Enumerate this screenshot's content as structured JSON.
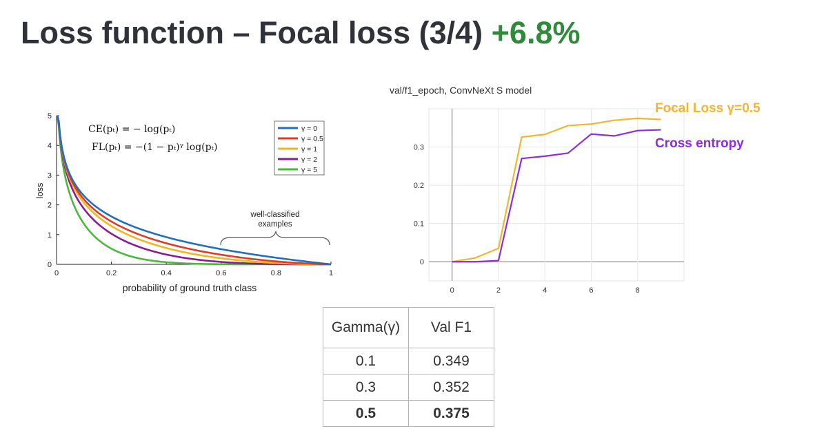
{
  "slide": {
    "title_main": "Loss function – Focal loss (3/4)",
    "title_gain": "+6.8%",
    "title_gain_color": "#2e8b3a"
  },
  "chart_data": [
    {
      "type": "line",
      "title": "",
      "xlabel": "probability of ground truth class",
      "ylabel": "loss",
      "xlim": [
        0,
        1
      ],
      "ylim": [
        0,
        5
      ],
      "xticks": [
        "0",
        "0.2",
        "0.4",
        "0.6",
        "0.8",
        "1"
      ],
      "yticks": [
        "0",
        "1",
        "2",
        "3",
        "4",
        "5"
      ],
      "formula_ce": "CE(pₜ) = − log(pₜ)",
      "formula_fl": "FL(pₜ) = −(1 − pₜ)ᵞ log(pₜ)",
      "annotation": [
        "well-classified",
        "examples"
      ],
      "legend_position": "top-right",
      "series": [
        {
          "name": "γ = 0",
          "gamma": 0,
          "color": "#1f6fc1"
        },
        {
          "name": "γ = 0.5",
          "gamma": 0.5,
          "color": "#e03a22"
        },
        {
          "name": "γ = 1",
          "gamma": 1,
          "color": "#f4b41a"
        },
        {
          "name": "γ = 2",
          "gamma": 2,
          "color": "#8a1b96"
        },
        {
          "name": "γ = 5",
          "gamma": 5,
          "color": "#4ab83a"
        }
      ]
    },
    {
      "type": "line",
      "title": "val/f1_epoch, ConvNeXt S model",
      "xlabel": "",
      "ylabel": "",
      "xlim": [
        -1,
        10
      ],
      "ylim": [
        -0.05,
        0.4
      ],
      "xticks": [
        "0",
        "2",
        "4",
        "6",
        "8"
      ],
      "yticks": [
        "0",
        "0.1",
        "0.2",
        "0.3"
      ],
      "series": [
        {
          "name": "Focal Loss γ=0.5",
          "color": "#f4b52e",
          "x": [
            0,
            1,
            2,
            3,
            4,
            5,
            6,
            7,
            8,
            9
          ],
          "values": [
            0,
            0.01,
            0.035,
            0.326,
            0.333,
            0.356,
            0.36,
            0.37,
            0.375,
            0.372
          ]
        },
        {
          "name": "Cross entropy",
          "color": "#8b2be2",
          "x": [
            0,
            1,
            2,
            3,
            4,
            5,
            6,
            7,
            8,
            9
          ],
          "values": [
            0,
            0,
            0.003,
            0.27,
            0.276,
            0.284,
            0.334,
            0.329,
            0.343,
            0.345
          ]
        }
      ]
    }
  ],
  "table": {
    "headers": [
      "Gamma(γ)",
      "Val F1"
    ],
    "rows": [
      [
        "0.1",
        "0.349"
      ],
      [
        "0.3",
        "0.352"
      ],
      [
        "0.5",
        "0.375"
      ]
    ]
  }
}
